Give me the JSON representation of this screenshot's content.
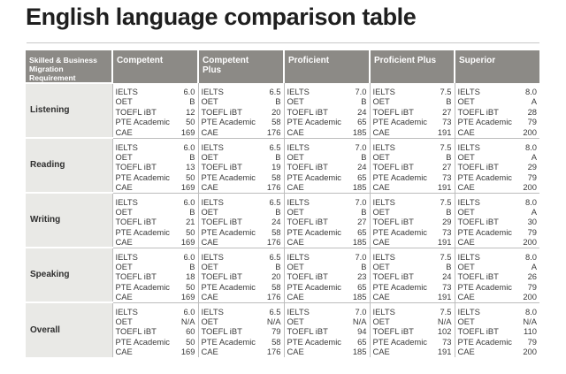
{
  "title": "English language comparison table",
  "headers": {
    "requirement": [
      "Skilled & Business",
      "Migration",
      "Requirement"
    ],
    "levels": [
      [
        "Competent"
      ],
      [
        "Competent",
        "Plus"
      ],
      [
        "Proficient"
      ],
      [
        "Proficient Plus"
      ],
      [
        "Superior"
      ]
    ]
  },
  "test_names": [
    "IELTS",
    "OET",
    "TOEFL iBT",
    "PTE Academic",
    "CAE"
  ],
  "rows": [
    {
      "skill": "Listening",
      "scores": [
        [
          "6.0",
          "B",
          "12",
          "50",
          "169"
        ],
        [
          "6.5",
          "B",
          "20",
          "58",
          "176"
        ],
        [
          "7.0",
          "B",
          "24",
          "65",
          "185"
        ],
        [
          "7.5",
          "B",
          "27",
          "73",
          "191"
        ],
        [
          "8.0",
          "A",
          "28",
          "79",
          "200"
        ]
      ]
    },
    {
      "skill": "Reading",
      "scores": [
        [
          "6.0",
          "B",
          "13",
          "50",
          "169"
        ],
        [
          "6.5",
          "B",
          "19",
          "58",
          "176"
        ],
        [
          "7.0",
          "B",
          "24",
          "65",
          "185"
        ],
        [
          "7.5",
          "B",
          "27",
          "73",
          "191"
        ],
        [
          "8.0",
          "A",
          "29",
          "79",
          "200"
        ]
      ]
    },
    {
      "skill": "Writing",
      "scores": [
        [
          "6.0",
          "B",
          "21",
          "50",
          "169"
        ],
        [
          "6.5",
          "B",
          "24",
          "58",
          "176"
        ],
        [
          "7.0",
          "B",
          "27",
          "65",
          "185"
        ],
        [
          "7.5",
          "B",
          "29",
          "73",
          "191"
        ],
        [
          "8.0",
          "A",
          "30",
          "79",
          "200"
        ]
      ]
    },
    {
      "skill": "Speaking",
      "scores": [
        [
          "6.0",
          "B",
          "18",
          "50",
          "169"
        ],
        [
          "6.5",
          "B",
          "20",
          "58",
          "176"
        ],
        [
          "7.0",
          "B",
          "23",
          "65",
          "185"
        ],
        [
          "7.5",
          "B",
          "24",
          "73",
          "191"
        ],
        [
          "8.0",
          "A",
          "26",
          "79",
          "200"
        ]
      ]
    },
    {
      "skill": "Overall",
      "scores": [
        [
          "6.0",
          "N/A",
          "60",
          "50",
          "169"
        ],
        [
          "6.5",
          "N/A",
          "79",
          "58",
          "176"
        ],
        [
          "7.0",
          "N/A",
          "94",
          "65",
          "185"
        ],
        [
          "7.5",
          "N/A",
          "102",
          "73",
          "191"
        ],
        [
          "8.0",
          "N/A",
          "110",
          "79",
          "200"
        ]
      ]
    }
  ],
  "colors": {
    "header_bg": "#8c8a86",
    "skill_bg": "#e9e9e6",
    "border": "#bdbdbd"
  }
}
